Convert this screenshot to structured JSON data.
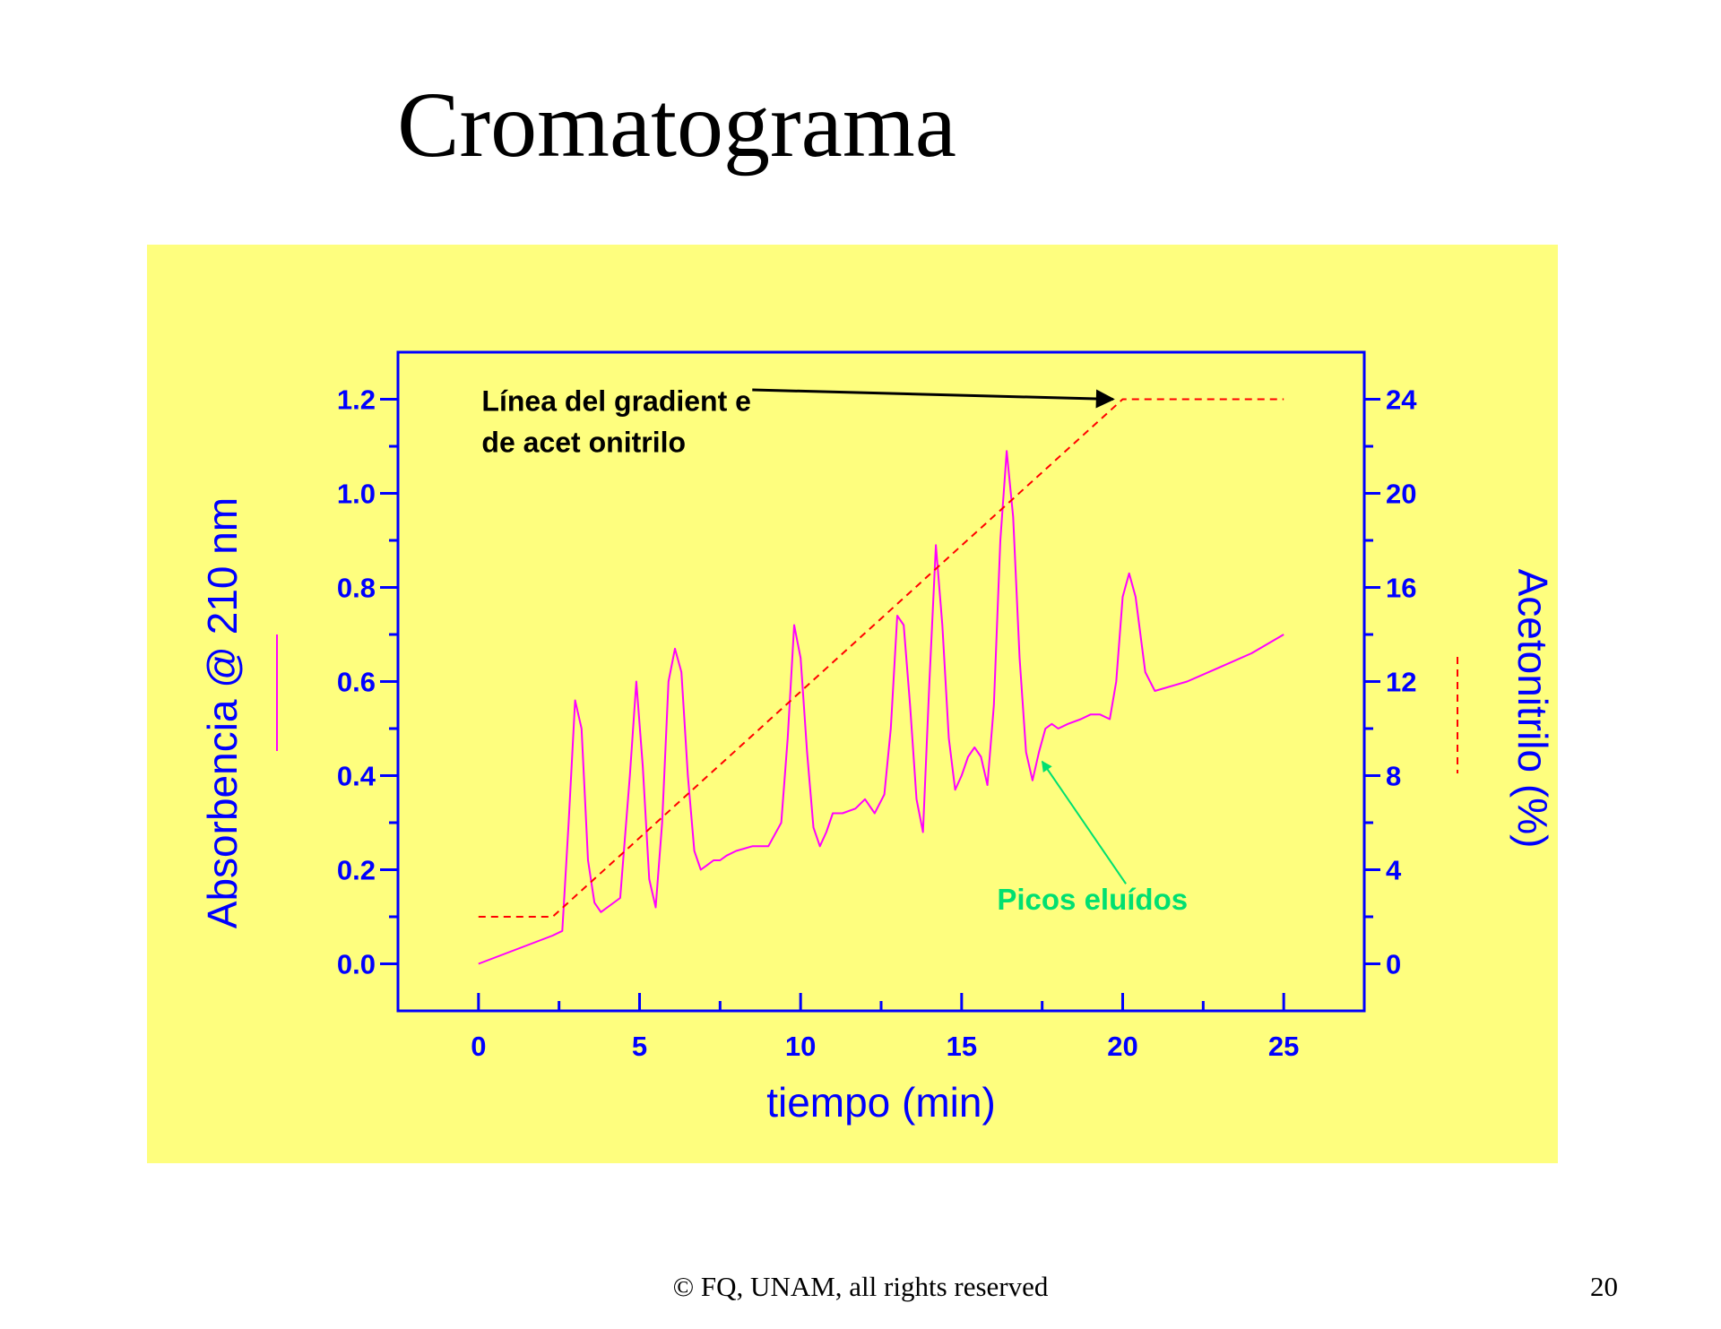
{
  "slide": {
    "title": "Cromatograma",
    "footer": "© FQ, UNAM, all rights reserved",
    "page_number": "20"
  },
  "colors": {
    "panel_background": "#fefe7e",
    "axis": "#0000ff",
    "absorbance_line": "#ff00ff",
    "gradient_line": "#ff0000",
    "annotation_black": "#000000",
    "annotation_green": "#00e070"
  },
  "chart_data": {
    "type": "line",
    "title": "",
    "xlabel": "tiempo (min)",
    "ylabel": "Absorbencia @ 210 nm",
    "y2label": "Acetonitrilo (%)",
    "xlim": [
      -2.5,
      27.5
    ],
    "ylim": [
      -0.1,
      1.3
    ],
    "y2lim": [
      -2,
      26
    ],
    "x_ticks": [
      "0",
      "5",
      "10",
      "15",
      "20",
      "25"
    ],
    "y_ticks": [
      "0.0",
      "0.2",
      "0.4",
      "0.6",
      "0.8",
      "1.0",
      "1.2"
    ],
    "y2_ticks": [
      "0",
      "4",
      "8",
      "12",
      "16",
      "20",
      "24"
    ],
    "grid": false,
    "series": [
      {
        "axis": "left",
        "style": "solid",
        "x": [
          0,
          2.3,
          2.6,
          2.8,
          3.0,
          3.2,
          3.4,
          3.6,
          3.8,
          4.0,
          4.4,
          4.7,
          4.9,
          5.1,
          5.3,
          5.5,
          5.7,
          5.9,
          6.1,
          6.3,
          6.5,
          6.7,
          6.9,
          7.1,
          7.3,
          7.5,
          7.7,
          8.0,
          8.5,
          9.0,
          9.4,
          9.6,
          9.8,
          10.0,
          10.2,
          10.4,
          10.6,
          10.8,
          11.0,
          11.3,
          11.7,
          12.0,
          12.3,
          12.6,
          12.8,
          13.0,
          13.2,
          13.4,
          13.6,
          13.8,
          14.0,
          14.2,
          14.4,
          14.6,
          14.8,
          15.0,
          15.2,
          15.4,
          15.6,
          15.8,
          16.0,
          16.2,
          16.4,
          16.6,
          16.8,
          17.0,
          17.2,
          17.4,
          17.6,
          17.8,
          18.0,
          18.3,
          18.7,
          19.0,
          19.3,
          19.6,
          19.8,
          20.0,
          20.2,
          20.4,
          20.7,
          21.0,
          22.0,
          23.0,
          24.0,
          25.0
        ],
        "y": [
          0.0,
          0.06,
          0.07,
          0.3,
          0.56,
          0.5,
          0.22,
          0.13,
          0.11,
          0.12,
          0.14,
          0.4,
          0.6,
          0.42,
          0.18,
          0.12,
          0.3,
          0.6,
          0.67,
          0.62,
          0.4,
          0.24,
          0.2,
          0.21,
          0.22,
          0.22,
          0.23,
          0.24,
          0.25,
          0.25,
          0.3,
          0.48,
          0.72,
          0.65,
          0.45,
          0.29,
          0.25,
          0.28,
          0.32,
          0.32,
          0.33,
          0.35,
          0.32,
          0.36,
          0.5,
          0.74,
          0.72,
          0.55,
          0.35,
          0.28,
          0.6,
          0.89,
          0.72,
          0.48,
          0.37,
          0.4,
          0.44,
          0.46,
          0.44,
          0.38,
          0.55,
          0.9,
          1.09,
          0.95,
          0.65,
          0.45,
          0.39,
          0.45,
          0.5,
          0.51,
          0.5,
          0.51,
          0.52,
          0.53,
          0.53,
          0.52,
          0.6,
          0.78,
          0.83,
          0.78,
          0.62,
          0.58,
          0.6,
          0.63,
          0.66,
          0.7
        ]
      },
      {
        "axis": "right",
        "style": "dashed",
        "x": [
          0,
          2.3,
          20.0,
          25.0
        ],
        "y": [
          2,
          2,
          24,
          24
        ]
      }
    ],
    "annotations": [
      {
        "lines": [
          "Línea del gradient e",
          "de acet onitrilo"
        ],
        "x": 0.1,
        "y": 1.175,
        "color": "black",
        "arrow_from": [
          8.5,
          1.22
        ],
        "arrow_to": [
          19.7,
          1.2
        ]
      },
      {
        "lines": [
          "Picos eluídos"
        ],
        "x": 16.1,
        "y": 0.115,
        "color": "green",
        "arrow_from": [
          20.1,
          0.17
        ],
        "arrow_to": [
          17.5,
          0.43
        ]
      }
    ]
  }
}
